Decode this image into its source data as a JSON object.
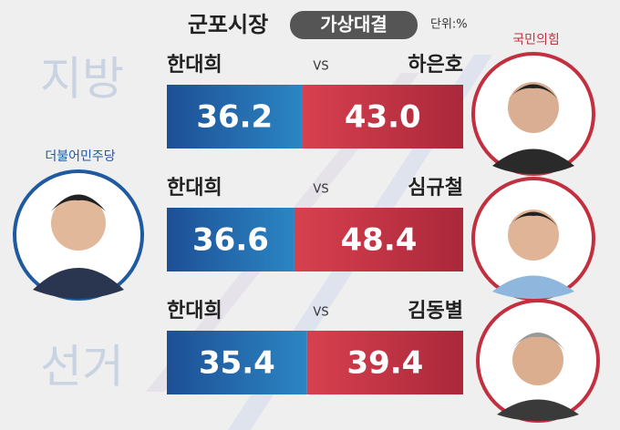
{
  "chart_data": {
    "type": "matchup",
    "title": "군포시장",
    "badge": "가상대결",
    "unit": "단위:%",
    "watermark": [
      "지방",
      "선거"
    ],
    "vs": "VS",
    "left_party": {
      "name": "더불어민주당",
      "color": "#1f5aa0"
    },
    "right_party": {
      "name": "국민의힘",
      "color": "#c2303f"
    },
    "matchups": [
      {
        "names": [
          "한대희",
          "하은호"
        ],
        "values": [
          36.2,
          43.0
        ],
        "value_labels": [
          "36.2",
          "43.0"
        ]
      },
      {
        "names": [
          "한대희",
          "심규철"
        ],
        "values": [
          36.6,
          48.4
        ],
        "value_labels": [
          "36.6",
          "48.4"
        ]
      },
      {
        "names": [
          "한대희",
          "김동별"
        ],
        "values": [
          35.4,
          39.4
        ],
        "value_labels": [
          "35.4",
          "39.4"
        ]
      }
    ]
  }
}
